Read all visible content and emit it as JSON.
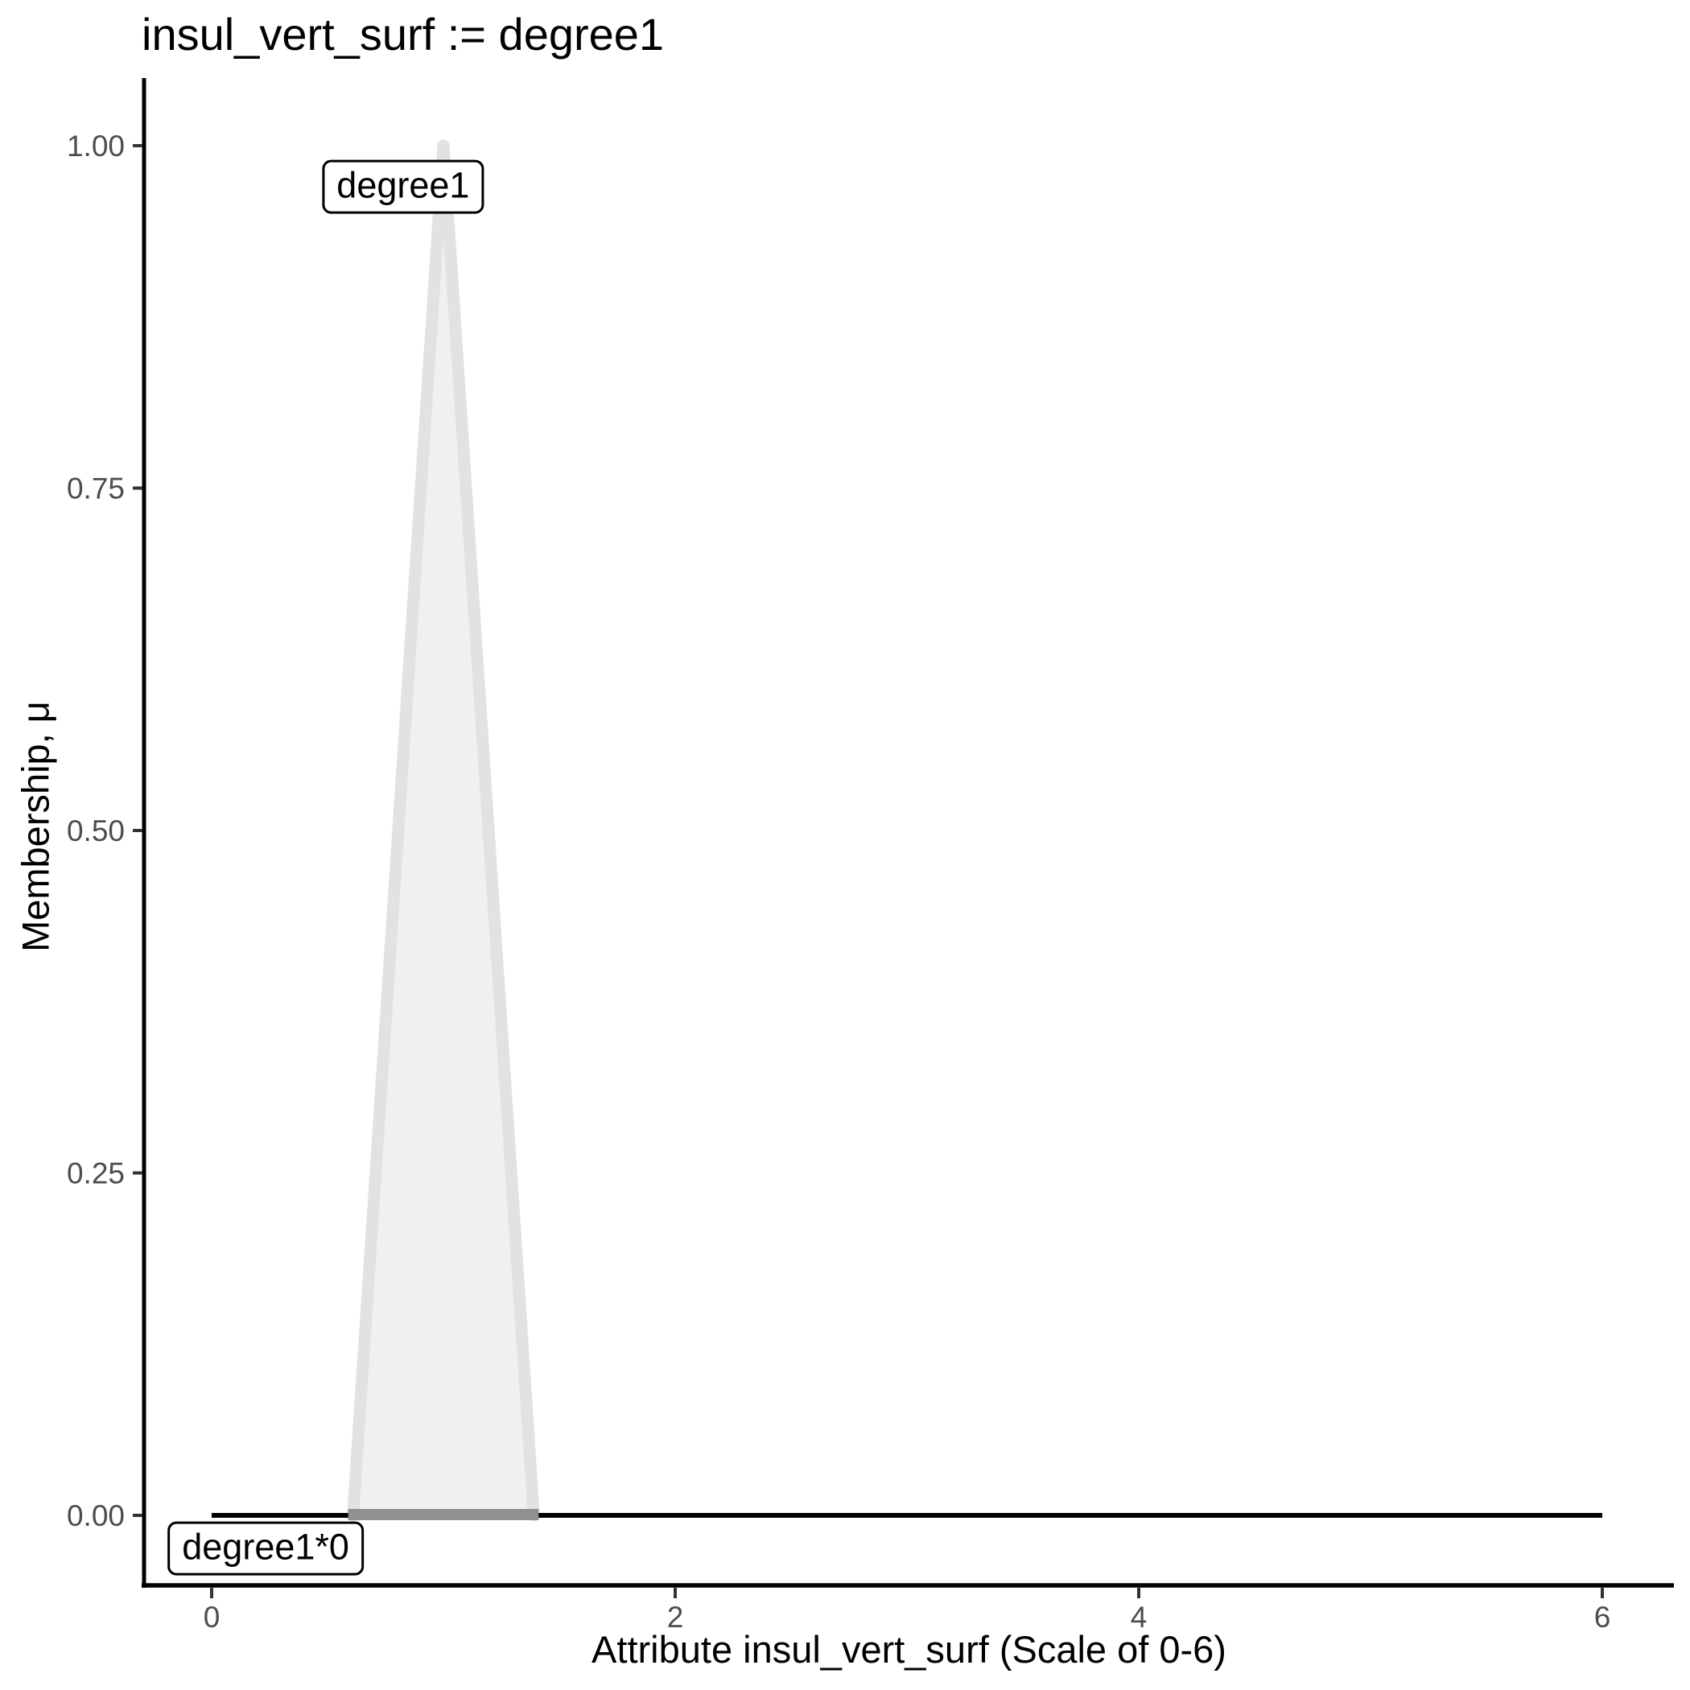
{
  "title": "insul_vert_surf := degree1",
  "chart_data": {
    "type": "area",
    "title": "insul_vert_surf := degree1",
    "xlabel": "Attribute insul_vert_surf (Scale of 0-6)",
    "ylabel": "Membership, μ",
    "xlim": [
      -0.3,
      6.31
    ],
    "ylim": [
      -0.05,
      1.05
    ],
    "grid": "off",
    "legend": "none",
    "x_ticks": {
      "values": [
        0,
        2,
        4,
        6
      ],
      "labels": [
        "0",
        "2",
        "4",
        "6"
      ]
    },
    "y_ticks": {
      "values": [
        0,
        0.25,
        0.5,
        0.75,
        1.0
      ],
      "labels": [
        "0.00",
        "0.25",
        "0.50",
        "0.75",
        "1.00"
      ]
    },
    "series": [
      {
        "name": "degree1",
        "kind": "triangle-membership",
        "points": [
          [
            0.61,
            0
          ],
          [
            1.0,
            1.0
          ],
          [
            1.39,
            0
          ]
        ],
        "fill": "#F0F0F0",
        "edge": "#E2E2E2",
        "base_overlap_color": "#909090"
      },
      {
        "name": "degree1*0",
        "kind": "line",
        "points": [
          [
            0,
            0
          ],
          [
            6,
            0
          ]
        ],
        "color": "#000000"
      }
    ],
    "annotations": [
      {
        "text": "degree1",
        "x": 0.826,
        "y": 0.97
      },
      {
        "text": "degree1*0",
        "x": 0.233,
        "y": -0.024
      }
    ],
    "colors": {
      "axis_line": "#000000",
      "tick_mark": "#333333",
      "tick_label": "#4D4D4D",
      "text": "#000000",
      "background": "#FFFFFF"
    }
  }
}
